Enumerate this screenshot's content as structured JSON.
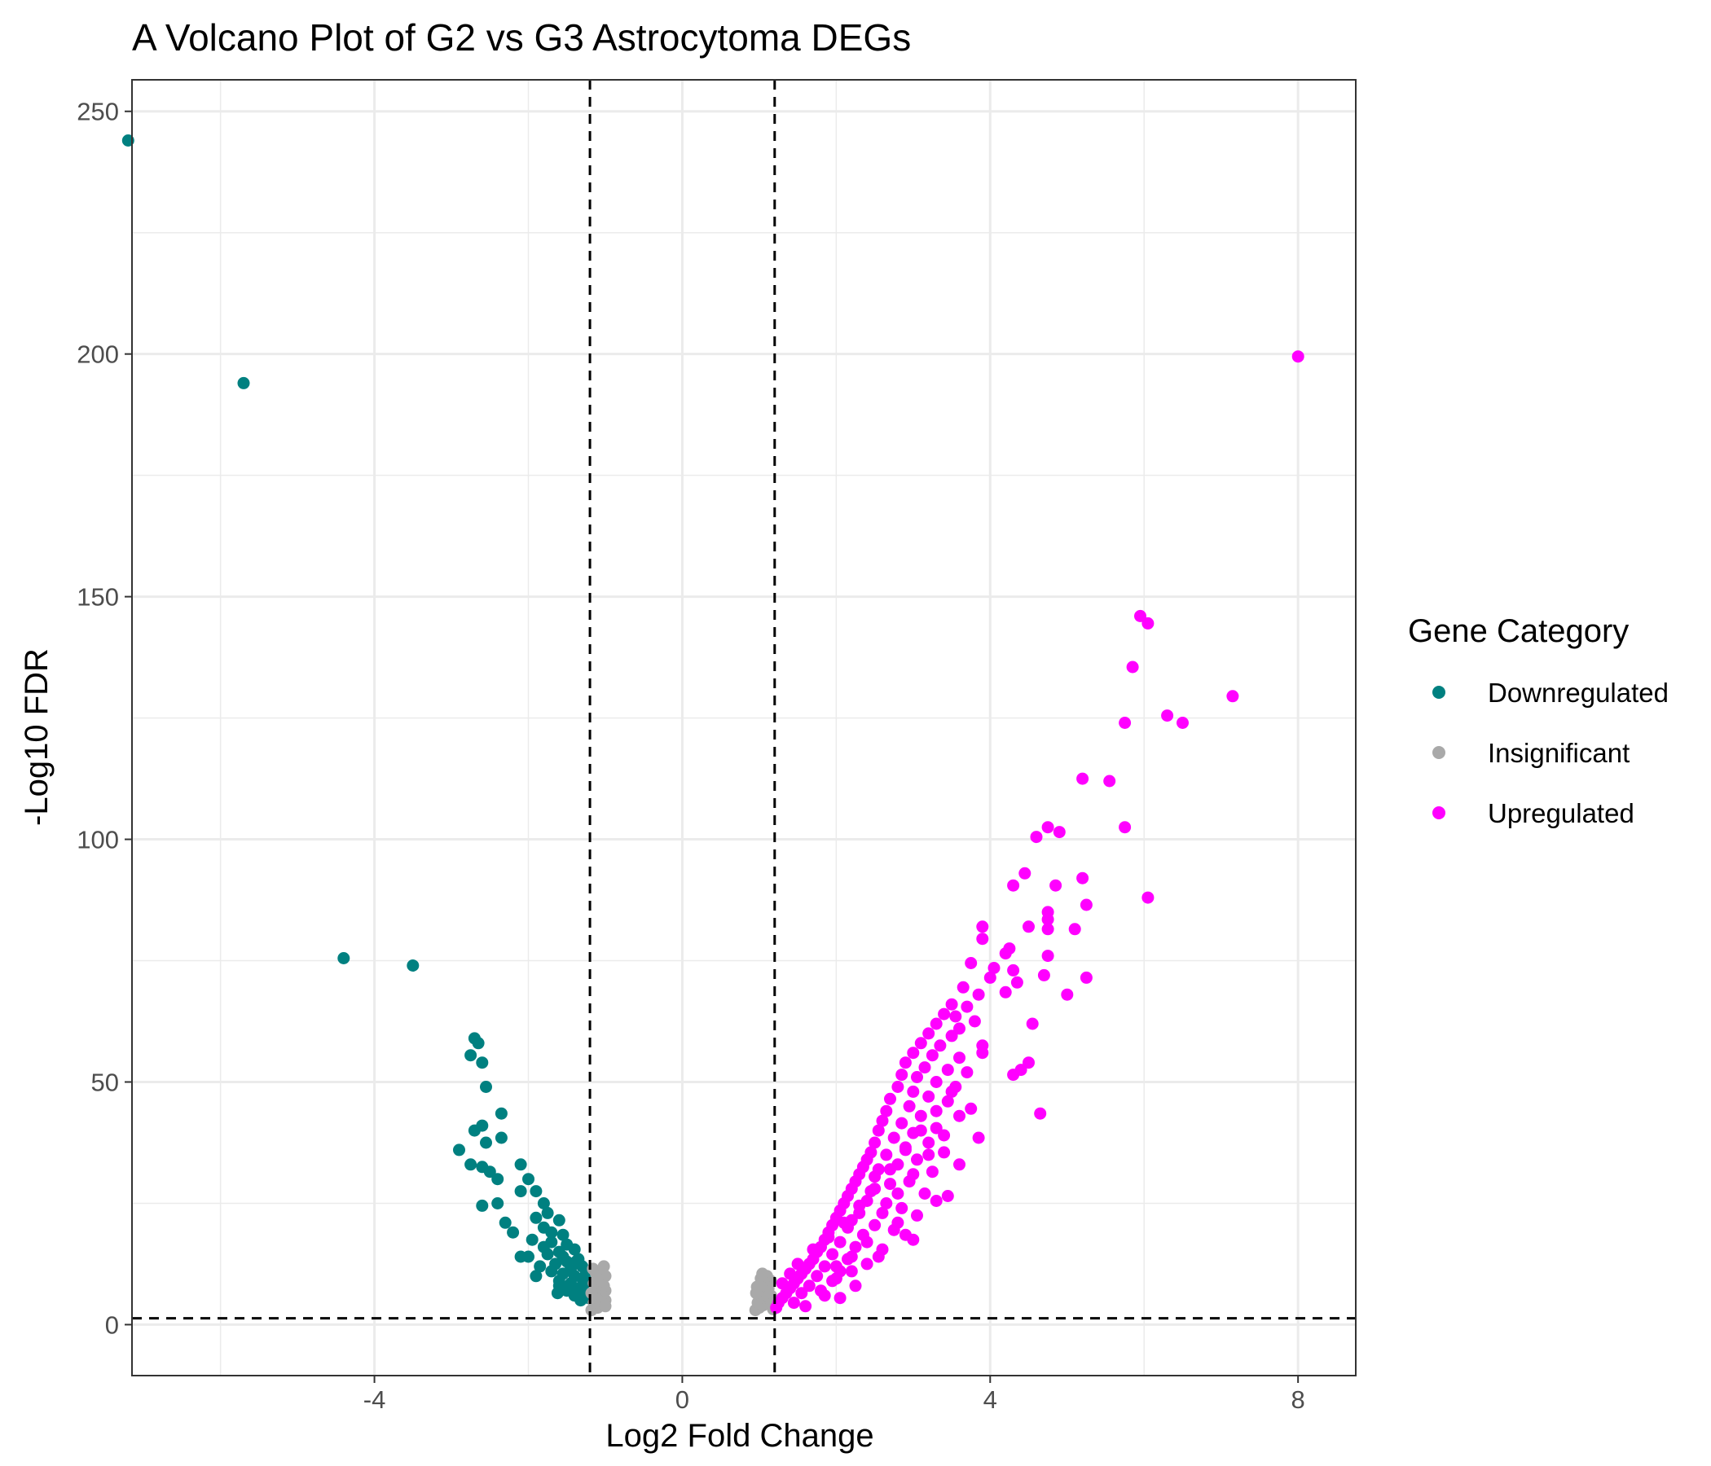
{
  "chart_data": {
    "type": "scatter",
    "title": "A Volcano Plot of G2 vs G3 Astrocytoma DEGs",
    "xlabel": "Log2 Fold Change",
    "ylabel": "-Log10 FDR",
    "xlim": [
      -7.15,
      8.75
    ],
    "ylim": [
      -10.5,
      256.5
    ],
    "x_ticks": [
      -4,
      0,
      4,
      8
    ],
    "y_ticks": [
      0,
      50,
      100,
      150,
      200,
      250
    ],
    "x_tick_labels": [
      "-4",
      "0",
      "4",
      "8"
    ],
    "y_tick_labels": [
      "0",
      "50",
      "100",
      "150",
      "200",
      "250"
    ],
    "grid": true,
    "thresholds": {
      "vlines": [
        -1.2,
        1.2
      ],
      "hline": 1.3,
      "style": "dashed"
    },
    "legend": {
      "title": "Gene Category",
      "position": "right",
      "entries": [
        {
          "label": "Downregulated",
          "color": "#008080"
        },
        {
          "label": "Insignificant",
          "color": "#A9A9A9"
        },
        {
          "label": "Upregulated",
          "color": "#FF00FF"
        }
      ]
    },
    "series": [
      {
        "name": "Downregulated",
        "color": "#008080",
        "points": [
          [
            -7.2,
            244
          ],
          [
            -5.7,
            194
          ],
          [
            -4.4,
            75.5
          ],
          [
            -3.5,
            74
          ],
          [
            -2.7,
            59
          ],
          [
            -2.65,
            58
          ],
          [
            -2.75,
            55.5
          ],
          [
            -2.6,
            54
          ],
          [
            -2.55,
            49
          ],
          [
            -2.35,
            43.5
          ],
          [
            -2.6,
            41
          ],
          [
            -2.7,
            40
          ],
          [
            -2.35,
            38.5
          ],
          [
            -2.55,
            37.5
          ],
          [
            -2.9,
            36
          ],
          [
            -2.1,
            33
          ],
          [
            -2.75,
            33
          ],
          [
            -2.6,
            32.5
          ],
          [
            -2.5,
            31.5
          ],
          [
            -2.4,
            30
          ],
          [
            -2.0,
            30
          ],
          [
            -1.9,
            27.5
          ],
          [
            -2.1,
            27.5
          ],
          [
            -1.8,
            25
          ],
          [
            -2.4,
            25
          ],
          [
            -2.6,
            24.5
          ],
          [
            -1.75,
            23
          ],
          [
            -1.9,
            22
          ],
          [
            -1.6,
            21.5
          ],
          [
            -2.3,
            21
          ],
          [
            -1.8,
            20
          ],
          [
            -1.7,
            19
          ],
          [
            -2.2,
            19
          ],
          [
            -1.55,
            18.5
          ],
          [
            -1.95,
            17.5
          ],
          [
            -1.7,
            17
          ],
          [
            -1.5,
            16.5
          ],
          [
            -1.8,
            16
          ],
          [
            -1.4,
            15.5
          ],
          [
            -1.6,
            15
          ],
          [
            -2.1,
            14
          ],
          [
            -2.0,
            14
          ],
          [
            -1.75,
            14.5
          ],
          [
            -1.55,
            14
          ],
          [
            -1.35,
            13.5
          ],
          [
            -1.5,
            13
          ],
          [
            -1.65,
            12.5
          ],
          [
            -1.3,
            12
          ],
          [
            -1.45,
            11.5
          ],
          [
            -1.7,
            11
          ],
          [
            -1.25,
            11
          ],
          [
            -1.55,
            10.5
          ],
          [
            -1.4,
            10
          ],
          [
            -1.3,
            9.5
          ],
          [
            -1.6,
            9
          ],
          [
            -1.45,
            8.5
          ],
          [
            -1.25,
            8
          ],
          [
            -1.35,
            7.5
          ],
          [
            -1.5,
            7
          ],
          [
            -1.28,
            6.5
          ],
          [
            -1.4,
            6
          ],
          [
            -1.22,
            5.5
          ],
          [
            -1.32,
            5
          ],
          [
            -1.6,
            8
          ],
          [
            -1.85,
            12
          ],
          [
            -1.2,
            9
          ],
          [
            -1.38,
            13
          ],
          [
            -1.62,
            6.5
          ],
          [
            -1.9,
            10
          ]
        ]
      },
      {
        "name": "Insignificant",
        "color": "#A9A9A9",
        "points": [
          [
            -1.18,
            3
          ],
          [
            -1.1,
            3.5
          ],
          [
            -1.05,
            4
          ],
          [
            -1.15,
            4.5
          ],
          [
            -1.0,
            5
          ],
          [
            -1.12,
            5.5
          ],
          [
            -1.05,
            6
          ],
          [
            -1.0,
            7
          ],
          [
            -1.1,
            7.5
          ],
          [
            -1.02,
            8
          ],
          [
            -1.15,
            8.5
          ],
          [
            -1.05,
            9
          ],
          [
            -1.0,
            10
          ],
          [
            -1.12,
            10.5
          ],
          [
            -1.08,
            11
          ],
          [
            -1.18,
            6.5
          ],
          [
            -1.0,
            3.8
          ],
          [
            -1.1,
            9.5
          ],
          [
            -1.16,
            11.5
          ],
          [
            -1.02,
            12
          ],
          [
            0.95,
            3
          ],
          [
            1.0,
            3.5
          ],
          [
            1.05,
            4
          ],
          [
            0.98,
            4.5
          ],
          [
            1.1,
            5
          ],
          [
            1.0,
            5.5
          ],
          [
            1.15,
            6
          ],
          [
            0.96,
            6.5
          ],
          [
            1.05,
            7
          ],
          [
            1.12,
            7.5
          ],
          [
            1.0,
            8
          ],
          [
            1.08,
            8.5
          ],
          [
            1.15,
            9
          ],
          [
            1.02,
            9.5
          ],
          [
            1.1,
            10
          ],
          [
            1.18,
            3.2
          ],
          [
            0.97,
            7.8
          ],
          [
            1.12,
            5.8
          ],
          [
            1.04,
            10.5
          ],
          [
            1.16,
            4.2
          ]
        ]
      },
      {
        "name": "Upregulated",
        "color": "#FF00FF",
        "points": [
          [
            8.0,
            199.5
          ],
          [
            5.95,
            146
          ],
          [
            6.05,
            144.5
          ],
          [
            5.85,
            135.5
          ],
          [
            7.15,
            129.5
          ],
          [
            6.3,
            125.5
          ],
          [
            5.75,
            124
          ],
          [
            6.5,
            124
          ],
          [
            5.2,
            112.5
          ],
          [
            5.55,
            112
          ],
          [
            5.75,
            102.5
          ],
          [
            4.75,
            102.5
          ],
          [
            4.9,
            101.5
          ],
          [
            4.6,
            100.5
          ],
          [
            5.2,
            92
          ],
          [
            4.85,
            90.5
          ],
          [
            4.3,
            90.5
          ],
          [
            6.05,
            88
          ],
          [
            4.45,
            93
          ],
          [
            5.25,
            86.5
          ],
          [
            4.75,
            85
          ],
          [
            4.75,
            83.5
          ],
          [
            4.5,
            82
          ],
          [
            5.1,
            81.5
          ],
          [
            3.9,
            82
          ],
          [
            4.75,
            81.5
          ],
          [
            3.9,
            79.5
          ],
          [
            4.25,
            77.5
          ],
          [
            4.2,
            76.5
          ],
          [
            4.75,
            76
          ],
          [
            3.75,
            74.5
          ],
          [
            4.05,
            73.5
          ],
          [
            4.3,
            73
          ],
          [
            4.7,
            72
          ],
          [
            5.25,
            71.5
          ],
          [
            4.0,
            71.5
          ],
          [
            4.35,
            70.5
          ],
          [
            3.65,
            69.5
          ],
          [
            3.85,
            68
          ],
          [
            4.2,
            68.5
          ],
          [
            5.0,
            68
          ],
          [
            3.5,
            66
          ],
          [
            3.7,
            65.5
          ],
          [
            3.4,
            64
          ],
          [
            3.55,
            63.5
          ],
          [
            3.8,
            62.5
          ],
          [
            3.3,
            62
          ],
          [
            4.55,
            62
          ],
          [
            3.6,
            61
          ],
          [
            3.2,
            60
          ],
          [
            3.5,
            59.5
          ],
          [
            3.1,
            58
          ],
          [
            3.35,
            57.5
          ],
          [
            3.9,
            57.5
          ],
          [
            3.0,
            56
          ],
          [
            3.25,
            55.5
          ],
          [
            3.6,
            55
          ],
          [
            2.9,
            54
          ],
          [
            3.15,
            53
          ],
          [
            4.5,
            54
          ],
          [
            3.45,
            52.5
          ],
          [
            4.4,
            52.5
          ],
          [
            2.85,
            51.5
          ],
          [
            3.05,
            51
          ],
          [
            4.3,
            51.5
          ],
          [
            3.3,
            50
          ],
          [
            2.8,
            49
          ],
          [
            3.55,
            49
          ],
          [
            3.0,
            48
          ],
          [
            3.2,
            47
          ],
          [
            2.7,
            46.5
          ],
          [
            3.45,
            46
          ],
          [
            2.95,
            45
          ],
          [
            2.65,
            44
          ],
          [
            3.75,
            44.5
          ],
          [
            4.65,
            43.5
          ],
          [
            3.1,
            43
          ],
          [
            2.6,
            42
          ],
          [
            2.85,
            41.5
          ],
          [
            3.3,
            40.5
          ],
          [
            2.55,
            40
          ],
          [
            3.0,
            39.5
          ],
          [
            2.75,
            38.5
          ],
          [
            2.5,
            37.5
          ],
          [
            3.85,
            38.5
          ],
          [
            3.2,
            37.5
          ],
          [
            2.9,
            36.5
          ],
          [
            2.45,
            35.5
          ],
          [
            2.65,
            35
          ],
          [
            3.4,
            35.5
          ],
          [
            2.4,
            34
          ],
          [
            3.05,
            34
          ],
          [
            2.8,
            33
          ],
          [
            2.35,
            32.5
          ],
          [
            2.55,
            32
          ],
          [
            3.6,
            33
          ],
          [
            2.3,
            31
          ],
          [
            3.25,
            31.5
          ],
          [
            2.5,
            30.5
          ],
          [
            2.25,
            29.5
          ],
          [
            2.7,
            29
          ],
          [
            2.95,
            29.5
          ],
          [
            2.2,
            28
          ],
          [
            2.45,
            27.5
          ],
          [
            2.15,
            26.5
          ],
          [
            3.45,
            26.5
          ],
          [
            2.4,
            25.5
          ],
          [
            2.1,
            25
          ],
          [
            2.65,
            25
          ],
          [
            3.3,
            25.5
          ],
          [
            2.05,
            23.5
          ],
          [
            2.3,
            23
          ],
          [
            2.85,
            24
          ],
          [
            2.0,
            22
          ],
          [
            2.2,
            21.5
          ],
          [
            3.05,
            22.5
          ],
          [
            1.95,
            20.5
          ],
          [
            2.5,
            20.5
          ],
          [
            2.15,
            20
          ],
          [
            1.9,
            19
          ],
          [
            2.35,
            18.5
          ],
          [
            2.75,
            19.5
          ],
          [
            1.85,
            17.5
          ],
          [
            2.05,
            17
          ],
          [
            3.0,
            17.5
          ],
          [
            1.8,
            16
          ],
          [
            2.25,
            16
          ],
          [
            1.75,
            15
          ],
          [
            2.6,
            15.5
          ],
          [
            1.95,
            14.5
          ],
          [
            1.7,
            13.5
          ],
          [
            2.15,
            13.5
          ],
          [
            1.65,
            12.5
          ],
          [
            1.85,
            12
          ],
          [
            2.4,
            12.5
          ],
          [
            1.6,
            11.5
          ],
          [
            2.05,
            11
          ],
          [
            1.55,
            10.5
          ],
          [
            1.75,
            10
          ],
          [
            1.5,
            9.5
          ],
          [
            1.95,
            9
          ],
          [
            1.45,
            8.5
          ],
          [
            1.65,
            8
          ],
          [
            1.4,
            7.5
          ],
          [
            2.25,
            8
          ],
          [
            1.35,
            6.5
          ],
          [
            1.55,
            6.5
          ],
          [
            1.3,
            5.5
          ],
          [
            1.85,
            6
          ],
          [
            1.25,
            4.5
          ],
          [
            1.45,
            4.5
          ],
          [
            1.22,
            3.5
          ],
          [
            1.6,
            3.8
          ],
          [
            2.05,
            5.5
          ],
          [
            1.4,
            10.5
          ],
          [
            1.3,
            8.5
          ],
          [
            1.5,
            12.5
          ],
          [
            1.7,
            15.5
          ],
          [
            1.9,
            18
          ],
          [
            2.1,
            21
          ],
          [
            2.3,
            24.5
          ],
          [
            2.5,
            28
          ],
          [
            2.7,
            32
          ],
          [
            2.9,
            36
          ],
          [
            3.1,
            40
          ],
          [
            3.3,
            44
          ],
          [
            3.5,
            48
          ],
          [
            3.7,
            52
          ],
          [
            3.9,
            56
          ],
          [
            2.6,
            23
          ],
          [
            2.8,
            27
          ],
          [
            3.0,
            31
          ],
          [
            3.2,
            35
          ],
          [
            3.4,
            39
          ],
          [
            3.6,
            43
          ],
          [
            2.2,
            14
          ],
          [
            2.4,
            17
          ],
          [
            2.0,
            12
          ],
          [
            2.8,
            21
          ],
          [
            3.15,
            27
          ],
          [
            1.8,
            7
          ],
          [
            2.0,
            9.5
          ],
          [
            2.2,
            11
          ],
          [
            2.55,
            14
          ],
          [
            2.9,
            18.5
          ]
        ]
      }
    ]
  }
}
